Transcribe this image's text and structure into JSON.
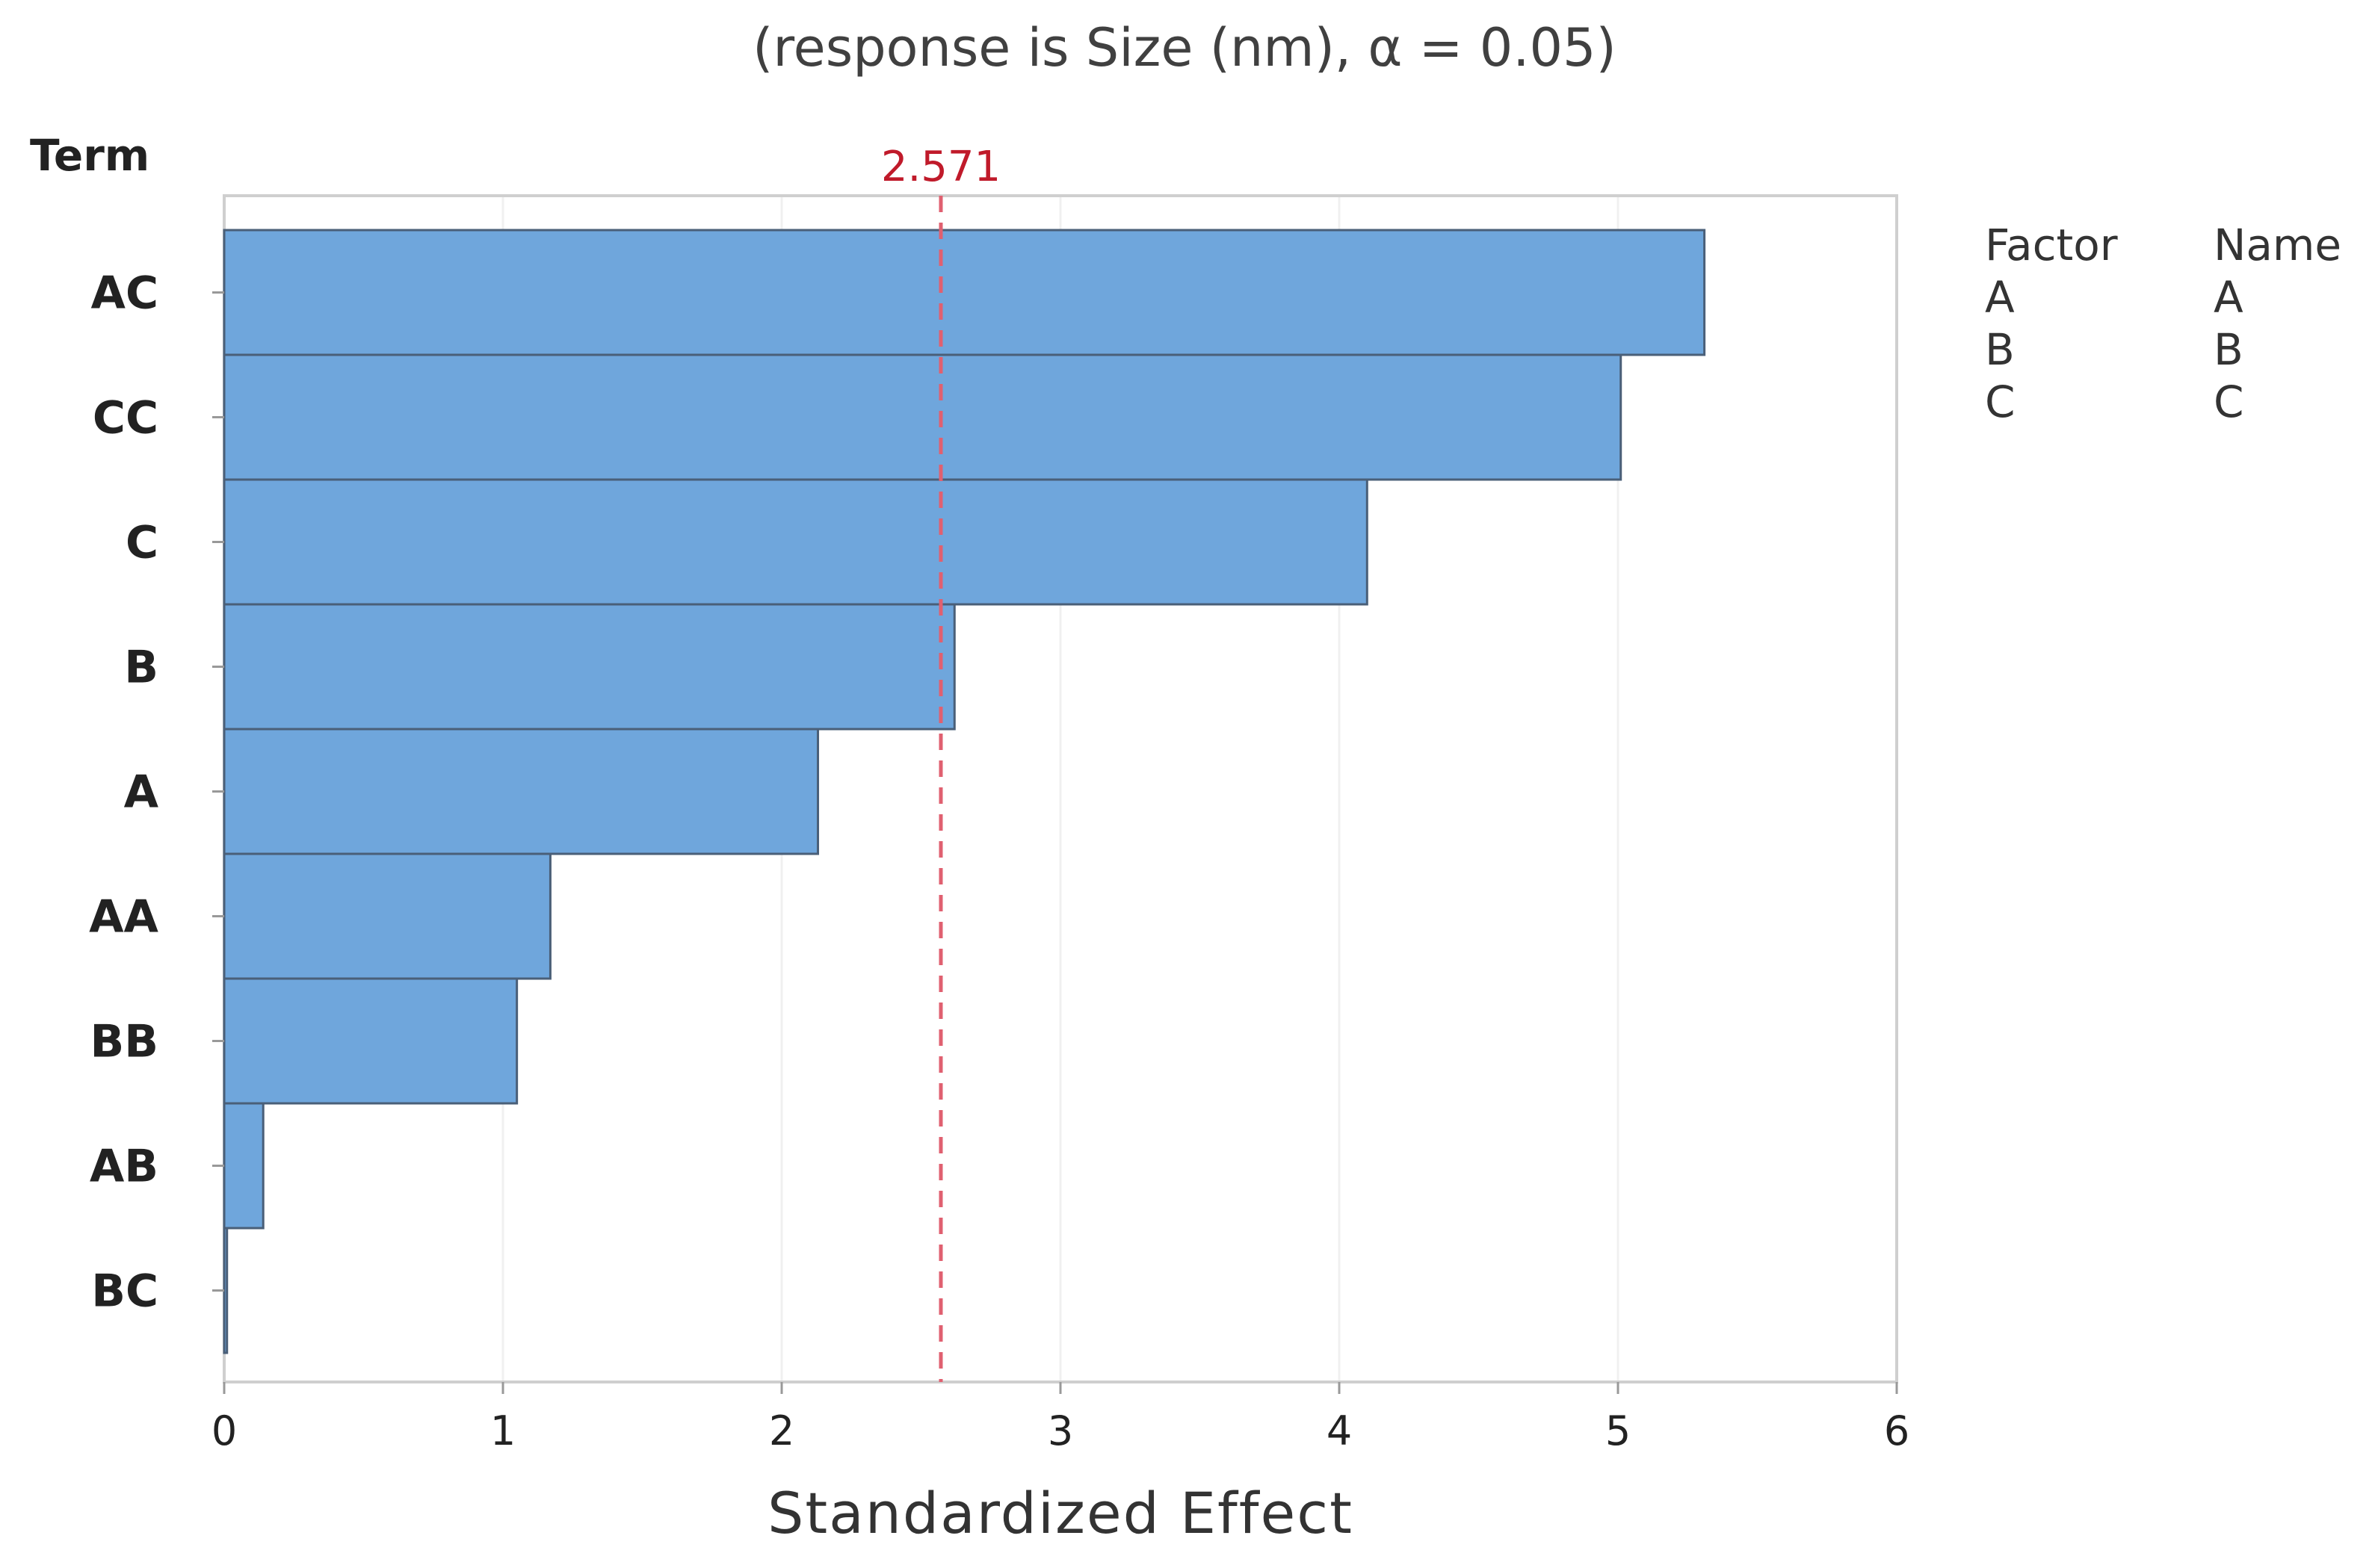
{
  "chart_data": {
    "type": "bar",
    "orientation": "horizontal",
    "title": "(response is Size (nm), α = 0.05)",
    "ylabel": "Term",
    "xlabel": "Standardized Effect",
    "categories": [
      "AC",
      "CC",
      "C",
      "B",
      "A",
      "AA",
      "BB",
      "AB",
      "BC"
    ],
    "values": [
      5.31,
      5.01,
      4.1,
      2.62,
      2.13,
      1.17,
      1.05,
      0.14,
      0.01
    ],
    "xlim": [
      0,
      6
    ],
    "xticks": [
      "0",
      "1",
      "2",
      "3",
      "4",
      "5",
      "6"
    ],
    "reference_line": {
      "value": 2.571,
      "label": "2.571",
      "color": "#c01a2a"
    },
    "bar_color": "#6fa6dc",
    "grid": true,
    "legend": {
      "placement": "top-right",
      "headers": [
        "Factor",
        "Name"
      ],
      "rows": [
        [
          "A",
          "A"
        ],
        [
          "B",
          "B"
        ],
        [
          "C",
          "C"
        ]
      ]
    }
  }
}
